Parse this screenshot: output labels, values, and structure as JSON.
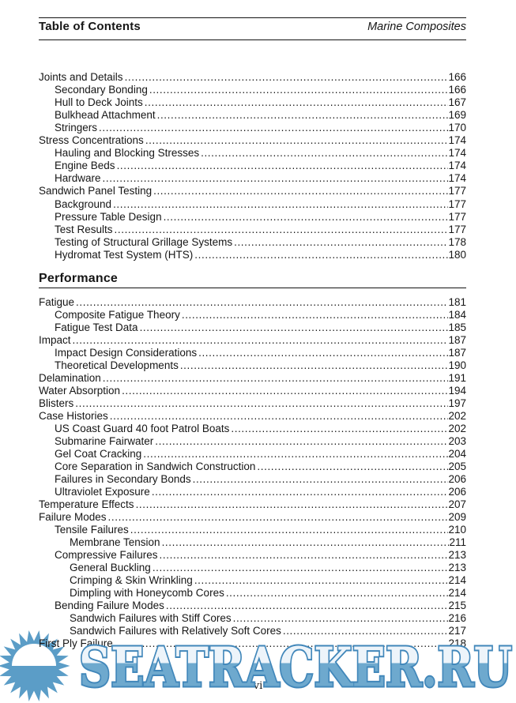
{
  "header": {
    "left_title": "Table of Contents",
    "right_title": "Marine Composites"
  },
  "sections": [
    {
      "heading": "",
      "entries": [
        {
          "level": 0,
          "title": "Joints and Details",
          "page": "166"
        },
        {
          "level": 1,
          "title": "Secondary Bonding",
          "page": "166"
        },
        {
          "level": 1,
          "title": "Hull to Deck Joints",
          "page": "167"
        },
        {
          "level": 1,
          "title": "Bulkhead Attachment",
          "page": "169"
        },
        {
          "level": 1,
          "title": "Stringers",
          "page": "170"
        },
        {
          "level": 0,
          "title": "Stress Concentrations",
          "page": "174"
        },
        {
          "level": 1,
          "title": "Hauling and Blocking Stresses",
          "page": "174"
        },
        {
          "level": 1,
          "title": "Engine Beds",
          "page": "174"
        },
        {
          "level": 1,
          "title": "Hardware",
          "page": "174"
        },
        {
          "level": 0,
          "title": "Sandwich Panel Testing",
          "page": "177"
        },
        {
          "level": 1,
          "title": "Background",
          "page": "177"
        },
        {
          "level": 1,
          "title": "Pressure Table Design",
          "page": "177"
        },
        {
          "level": 1,
          "title": "Test Results",
          "page": "177"
        },
        {
          "level": 1,
          "title": "Testing of Structural Grillage Systems",
          "page": "178"
        },
        {
          "level": 1,
          "title": "Hydromat Test System (HTS)",
          "page": "180"
        }
      ]
    },
    {
      "heading": "Performance",
      "entries": [
        {
          "level": 0,
          "title": "Fatigue",
          "page": "181"
        },
        {
          "level": 1,
          "title": "Composite Fatigue Theory",
          "page": "184"
        },
        {
          "level": 1,
          "title": "Fatigue Test Data",
          "page": "185"
        },
        {
          "level": 0,
          "title": "Impact",
          "page": "187"
        },
        {
          "level": 1,
          "title": "Impact Design Considerations",
          "page": "187"
        },
        {
          "level": 1,
          "title": "Theoretical Developments",
          "page": "190"
        },
        {
          "level": 0,
          "title": "Delamination",
          "page": "191"
        },
        {
          "level": 0,
          "title": "Water Absorption",
          "page": "194"
        },
        {
          "level": 0,
          "title": "Blisters",
          "page": "197"
        },
        {
          "level": 0,
          "title": "Case Histories",
          "page": "202"
        },
        {
          "level": 1,
          "title": "US Coast Guard 40 foot Patrol Boats",
          "page": "202"
        },
        {
          "level": 1,
          "title": "Submarine Fairwater",
          "page": "203"
        },
        {
          "level": 1,
          "title": "Gel Coat Cracking",
          "page": "204"
        },
        {
          "level": 1,
          "title": "Core Separation in Sandwich Construction",
          "page": "205"
        },
        {
          "level": 1,
          "title": "Failures in Secondary Bonds",
          "page": "206"
        },
        {
          "level": 1,
          "title": "Ultraviolet Exposure",
          "page": "206"
        },
        {
          "level": 0,
          "title": "Temperature Effects",
          "page": "207"
        },
        {
          "level": 0,
          "title": "Failure Modes",
          "page": "209"
        },
        {
          "level": 1,
          "title": "Tensile Failures",
          "page": "210"
        },
        {
          "level": 2,
          "title": "Membrane Tension",
          "page": "211"
        },
        {
          "level": 1,
          "title": "Compressive Failures",
          "page": "213"
        },
        {
          "level": 2,
          "title": "General Buckling",
          "page": "213"
        },
        {
          "level": 2,
          "title": "Crimping & Skin Wrinkling",
          "page": "214"
        },
        {
          "level": 2,
          "title": "Dimpling with Honeycomb Cores",
          "page": "214"
        },
        {
          "level": 1,
          "title": "Bending Failure Modes",
          "page": "215"
        },
        {
          "level": 2,
          "title": "Sandwich Failures with Stiff Cores",
          "page": "216"
        },
        {
          "level": 2,
          "title": "Sandwich Failures with Relatively Soft Cores",
          "page": "217"
        },
        {
          "level": 0,
          "title": "First Ply Failure",
          "page": "218"
        }
      ]
    }
  ],
  "footer": {
    "page_label": "vi"
  },
  "watermark": {
    "text": "SEATRACKER.RU",
    "outline_color": "#4187ba",
    "fill_bottom": "#6ea9ce",
    "fill_top": "#edf4fa",
    "sun_color": "#5b9dc7"
  }
}
